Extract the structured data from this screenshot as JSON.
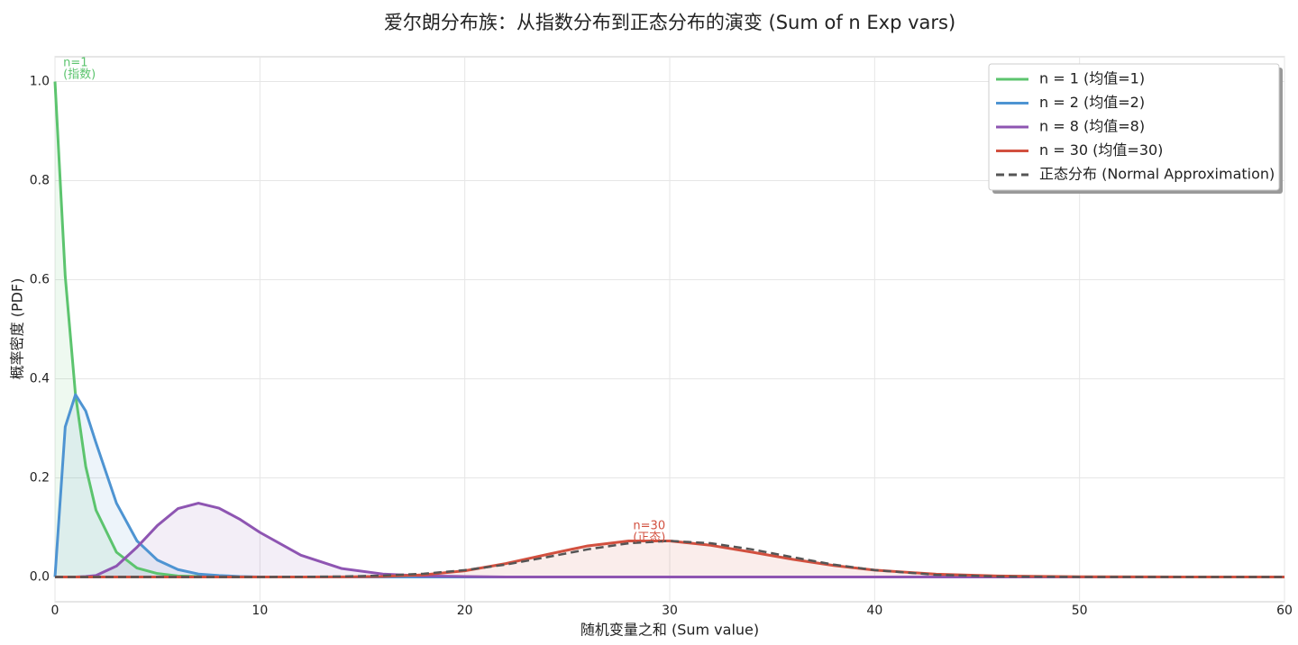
{
  "chart_data": {
    "type": "line",
    "title": "爱尔朗分布族：从指数分布到正态分布的演变 (Sum of n Exp vars)",
    "x_label": "随机变量之和 (Sum value)",
    "y_label": "概率密度 (PDF)",
    "x": [
      0,
      0.5,
      1,
      1.5,
      2,
      3,
      4,
      5,
      6,
      7,
      8,
      9,
      10,
      12,
      14,
      16,
      18,
      20,
      22,
      24,
      26,
      28,
      30,
      32,
      34,
      36,
      38,
      40,
      43,
      46,
      50,
      55,
      60
    ],
    "series": [
      {
        "name": "n = 1 (均值=1)",
        "color": "#5cc46e",
        "fill": true,
        "dashed": false,
        "values": [
          1,
          0.607,
          0.368,
          0.223,
          0.135,
          0.05,
          0.018,
          0.007,
          0.002,
          0.001,
          0,
          0,
          0,
          0,
          0,
          0,
          0,
          0,
          0,
          0,
          0,
          0,
          0,
          0,
          0,
          0,
          0,
          0,
          0,
          0,
          0,
          0,
          0
        ]
      },
      {
        "name": "n = 2 (均值=2)",
        "color": "#4e94d2",
        "fill": true,
        "dashed": false,
        "values": [
          0,
          0.303,
          0.368,
          0.335,
          0.271,
          0.149,
          0.073,
          0.034,
          0.015,
          0.006,
          0.003,
          0.001,
          0,
          0,
          0,
          0,
          0,
          0,
          0,
          0,
          0,
          0,
          0,
          0,
          0,
          0,
          0,
          0,
          0,
          0,
          0,
          0,
          0
        ]
      },
      {
        "name": "n = 8 (均值=8)",
        "color": "#8e55b2",
        "fill": true,
        "dashed": false,
        "values": [
          0,
          0,
          0,
          0.001,
          0.003,
          0.022,
          0.06,
          0.104,
          0.138,
          0.149,
          0.139,
          0.117,
          0.09,
          0.044,
          0.017,
          0.006,
          0.002,
          0.001,
          0,
          0,
          0,
          0,
          0,
          0,
          0,
          0,
          0,
          0,
          0,
          0,
          0,
          0,
          0
        ]
      },
      {
        "name": "n = 30 (均值=30)",
        "color": "#d2503f",
        "fill": true,
        "dashed": false,
        "values": [
          0,
          0,
          0,
          0,
          0,
          0,
          0,
          0,
          0,
          0,
          0,
          0,
          0,
          0,
          0.0002,
          0.0011,
          0.0044,
          0.0125,
          0.027,
          0.0454,
          0.0628,
          0.0728,
          0.0728,
          0.064,
          0.0503,
          0.0357,
          0.0232,
          0.0139,
          0.0057,
          0.002,
          0.0004,
          0,
          0
        ]
      },
      {
        "name": "正态分布 (Normal Approximation)",
        "color": "#555555",
        "fill": false,
        "dashed": true,
        "values": [
          0,
          0,
          0,
          0,
          0,
          0,
          0,
          0,
          0,
          0,
          0,
          0,
          0,
          0.0003,
          0.001,
          0.0028,
          0.0066,
          0.0138,
          0.025,
          0.04,
          0.0558,
          0.0681,
          0.0728,
          0.0681,
          0.0558,
          0.04,
          0.025,
          0.0138,
          0.0044,
          0.001,
          0.0001,
          0,
          0
        ]
      }
    ],
    "annotations": [
      {
        "lines": [
          "n=1",
          "(指数)"
        ],
        "x": 0.4,
        "y": 1.025,
        "color": "#5cc46e"
      },
      {
        "lines": [
          "n=30",
          "(正态)"
        ],
        "x": 29,
        "y": 0.09,
        "color": "#d2503f"
      }
    ],
    "xlim": [
      0,
      60
    ],
    "ylim": [
      -0.05,
      1.05
    ],
    "xticks": [
      0,
      10,
      20,
      30,
      40,
      50,
      60
    ],
    "yticks": [
      {
        "value": 0,
        "label": "0.0"
      },
      0.2,
      0.4,
      0.6,
      0.8,
      {
        "value": 1,
        "label": "1.0"
      }
    ],
    "grid": true,
    "legend": "upper right"
  }
}
